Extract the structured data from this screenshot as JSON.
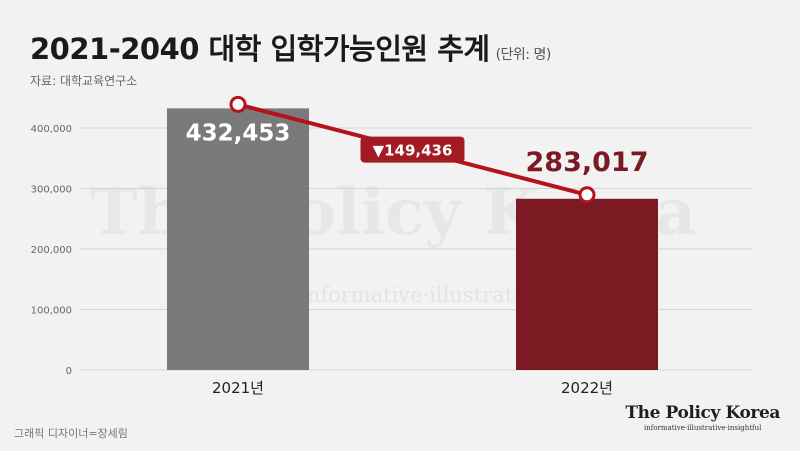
{
  "header": {
    "title": "2021-2040 대학 입학가능인원 추계",
    "unit": "(단위: 명)",
    "source": "자료: 대학교육연구소"
  },
  "footer": {
    "credit": "그래픽 디자이너=장세림",
    "brand_name": "The Policy Korea",
    "brand_tagline": "informative·illustrative·insightful"
  },
  "watermark": {
    "text": "The Policy Korea",
    "tagline": "informative·illustrative·insightful"
  },
  "chart_data": {
    "type": "bar",
    "categories": [
      "2021년",
      "2022년"
    ],
    "values": [
      432453,
      283017
    ],
    "value_labels": [
      "432,453",
      "283,017"
    ],
    "y_ticks": [
      0,
      100000,
      200000,
      300000,
      400000
    ],
    "y_tick_labels": [
      "0",
      "100,000",
      "200,000",
      "300,000",
      "400,000"
    ],
    "ylim": [
      0,
      450000
    ],
    "grid": true,
    "bar_colors": [
      "#7a7a7a",
      "#7b1a22"
    ],
    "trend_line_color": "#b5121b",
    "change_label": "▼149,436",
    "change_value": -149436
  }
}
